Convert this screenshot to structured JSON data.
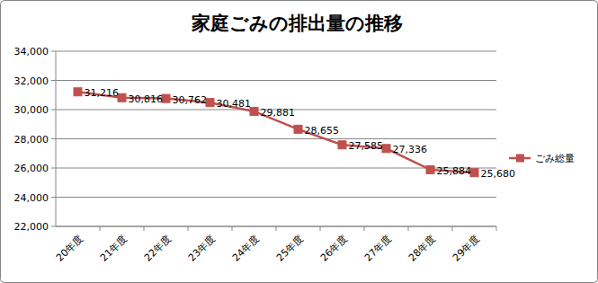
{
  "chart_data": {
    "type": "line",
    "title": "家庭ごみの排出量の推移",
    "categories": [
      "20年度",
      "21年度",
      "22年度",
      "23年度",
      "24年度",
      "25年度",
      "26年度",
      "27年度",
      "28年度",
      "29年度"
    ],
    "series": [
      {
        "name": "ごみ総量",
        "color": "#c0504d",
        "marker": "square",
        "values": [
          31216,
          30816,
          30762,
          30481,
          29881,
          28655,
          27585,
          27336,
          25884,
          25680
        ],
        "value_labels": [
          "31,216",
          "30,816",
          "30,762",
          "30,481",
          "29,881",
          "28,655",
          "27,585",
          "27,336",
          "25,884",
          "25,680"
        ]
      }
    ],
    "ylim": [
      22000,
      34000
    ],
    "yticks": [
      {
        "value": 22000,
        "label": "22,000"
      },
      {
        "value": 24000,
        "label": "24,000"
      },
      {
        "value": 26000,
        "label": "26,000"
      },
      {
        "value": 28000,
        "label": "28,000"
      },
      {
        "value": 30000,
        "label": "30,000"
      },
      {
        "value": 32000,
        "label": "32,000"
      },
      {
        "value": 34000,
        "label": "34,000"
      }
    ],
    "grid": true,
    "legend": "right",
    "data_labels": true
  }
}
